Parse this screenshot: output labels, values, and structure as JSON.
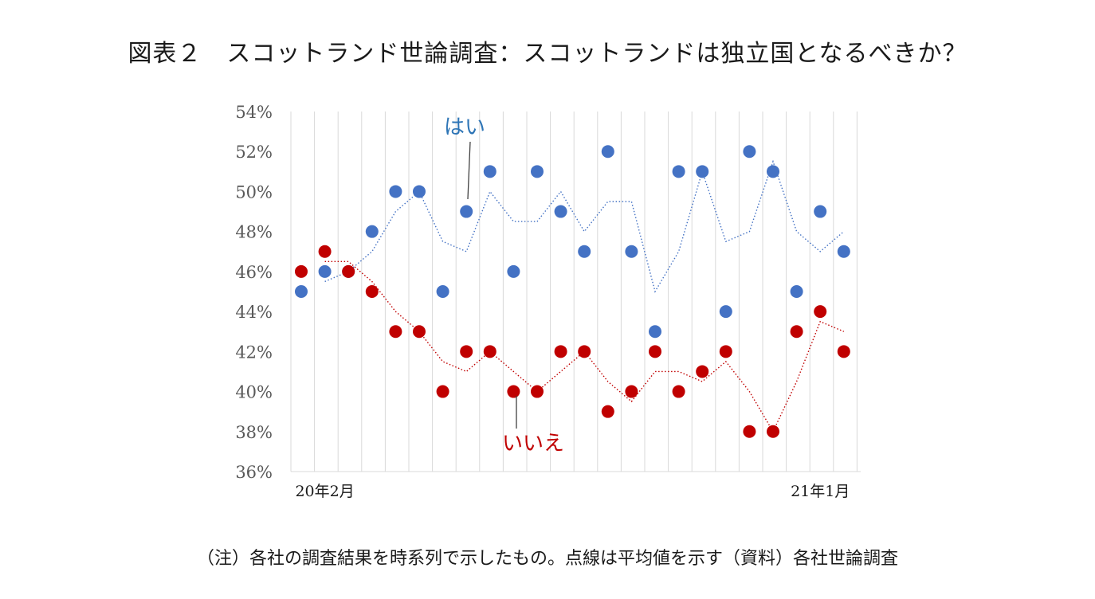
{
  "title": "図表２　スコットランド世論調査：スコットランドは独立国となるべきか？",
  "note": "（注）各社の調査結果を時系列で示したもの。点線は平均値を示す（資料）各社世論調査",
  "chart_data": {
    "type": "scatter",
    "ylim": [
      36,
      54
    ],
    "yticks": [
      "36%",
      "38%",
      "40%",
      "42%",
      "44%",
      "46%",
      "48%",
      "50%",
      "52%",
      "54%"
    ],
    "x_labels": [
      {
        "index": 1,
        "text": "20年2月"
      },
      {
        "index": 22,
        "text": "21年1月"
      }
    ],
    "n_points": 24,
    "grid": "vertical",
    "series": [
      {
        "name": "はい",
        "color": "#4472c4",
        "values": [
          45,
          46,
          46,
          48,
          50,
          50,
          45,
          49,
          51,
          46,
          51,
          49,
          47,
          52,
          47,
          43,
          51,
          51,
          44,
          52,
          51,
          45,
          49,
          47
        ],
        "average": [
          null,
          45.5,
          46,
          47,
          49,
          50,
          47.5,
          47,
          50,
          48.5,
          48.5,
          50,
          48,
          49.5,
          49.5,
          45,
          47,
          51,
          47.5,
          48,
          51.5,
          48,
          47,
          48
        ]
      },
      {
        "name": "いいえ",
        "color": "#c00000",
        "values": [
          46,
          47,
          46,
          45,
          43,
          43,
          40,
          42,
          42,
          40,
          40,
          42,
          42,
          39,
          40,
          42,
          40,
          41,
          42,
          38,
          38,
          43,
          44,
          42
        ],
        "average": [
          null,
          46.5,
          46.5,
          45.5,
          44,
          43,
          41.5,
          41,
          42,
          41,
          40,
          41,
          42,
          40.5,
          39.5,
          41,
          41,
          40.5,
          41.5,
          40,
          38,
          40.5,
          43.5,
          43
        ]
      }
    ]
  }
}
